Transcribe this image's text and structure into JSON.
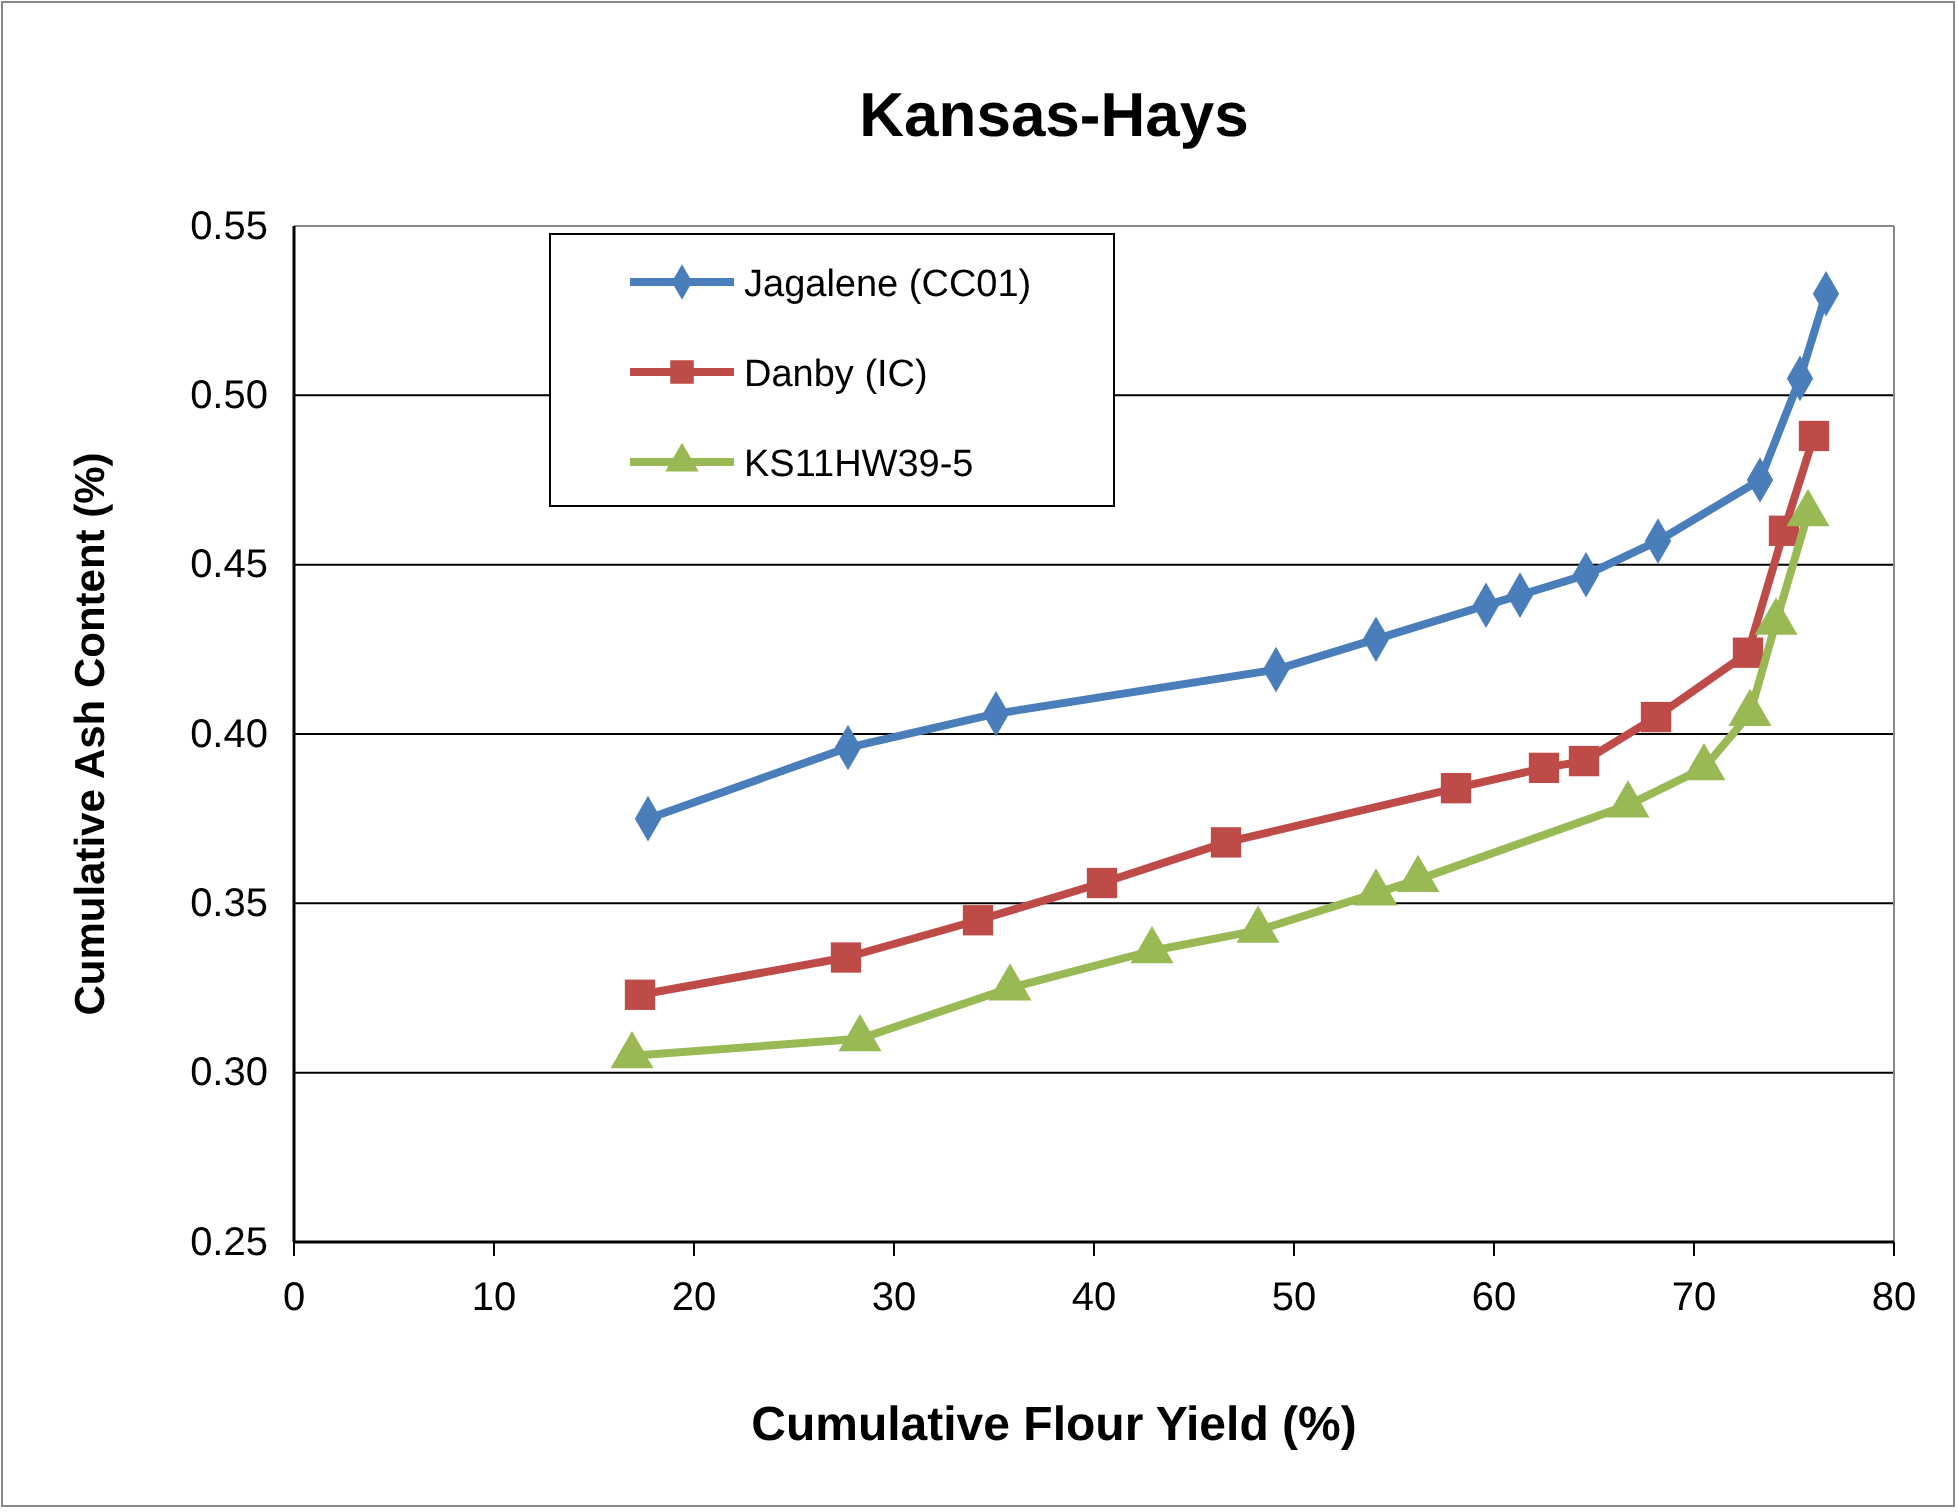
{
  "chart_data": {
    "type": "line",
    "title": "Kansas-Hays",
    "xlabel": "Cumulative Flour Yield (%)",
    "ylabel": "Cumulative Ash Content (%)",
    "xlim": [
      0,
      80
    ],
    "xticks": [
      0,
      10,
      20,
      30,
      40,
      50,
      60,
      70,
      80
    ],
    "ylim": [
      0.25,
      0.55
    ],
    "yticks": [
      {
        "value": 0.25,
        "label": "0.25"
      },
      {
        "value": 0.3,
        "label": "0.30"
      },
      {
        "value": 0.35,
        "label": "0.35"
      },
      {
        "value": 0.4,
        "label": "0.40"
      },
      {
        "value": 0.45,
        "label": "0.45"
      },
      {
        "value": 0.5,
        "label": "0.50"
      },
      {
        "value": 0.55,
        "label": "0.55"
      }
    ],
    "grid": "y",
    "legend": "top left",
    "series": [
      {
        "name": "Jagalene (CC01)",
        "color": "#4a7ebb",
        "marker": "diamond",
        "x": [
          17.7,
          27.7,
          35.1,
          49.1,
          54.1,
          59.6,
          61.3,
          64.6,
          68.2,
          73.3,
          75.3,
          76.6
        ],
        "values": [
          0.375,
          0.396,
          0.406,
          0.419,
          0.428,
          0.438,
          0.441,
          0.447,
          0.457,
          0.475,
          0.505,
          0.53
        ]
      },
      {
        "name": "Danby (IC)",
        "color": "#be4b48",
        "marker": "square",
        "x": [
          17.3,
          27.6,
          34.2,
          40.4,
          46.6,
          58.1,
          62.5,
          64.5,
          68.1,
          72.7,
          74.5,
          76.0
        ],
        "values": [
          0.323,
          0.334,
          0.345,
          0.356,
          0.368,
          0.384,
          0.39,
          0.392,
          0.405,
          0.424,
          0.46,
          0.488
        ]
      },
      {
        "name": "KS11HW39-5",
        "color": "#98b954",
        "marker": "triangle",
        "x": [
          16.9,
          28.3,
          35.8,
          42.9,
          48.2,
          54.1,
          56.2,
          66.7,
          70.5,
          72.8,
          74.1,
          75.7
        ],
        "values": [
          0.305,
          0.31,
          0.325,
          0.336,
          0.342,
          0.353,
          0.357,
          0.379,
          0.39,
          0.406,
          0.433,
          0.465
        ]
      }
    ]
  }
}
